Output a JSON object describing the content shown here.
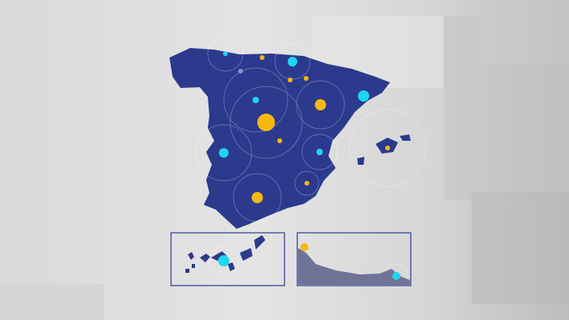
{
  "colors": {
    "background": "#dcdcdc",
    "land": "#2c3a8e",
    "inset_land": "#6f7396",
    "inset_border": "#2c3a8e",
    "marker_yellow": "#f7b90f",
    "marker_cyan": "#1fd6f0",
    "marker_gray": "#8a93c4",
    "ring": "#ffffff"
  }
}
